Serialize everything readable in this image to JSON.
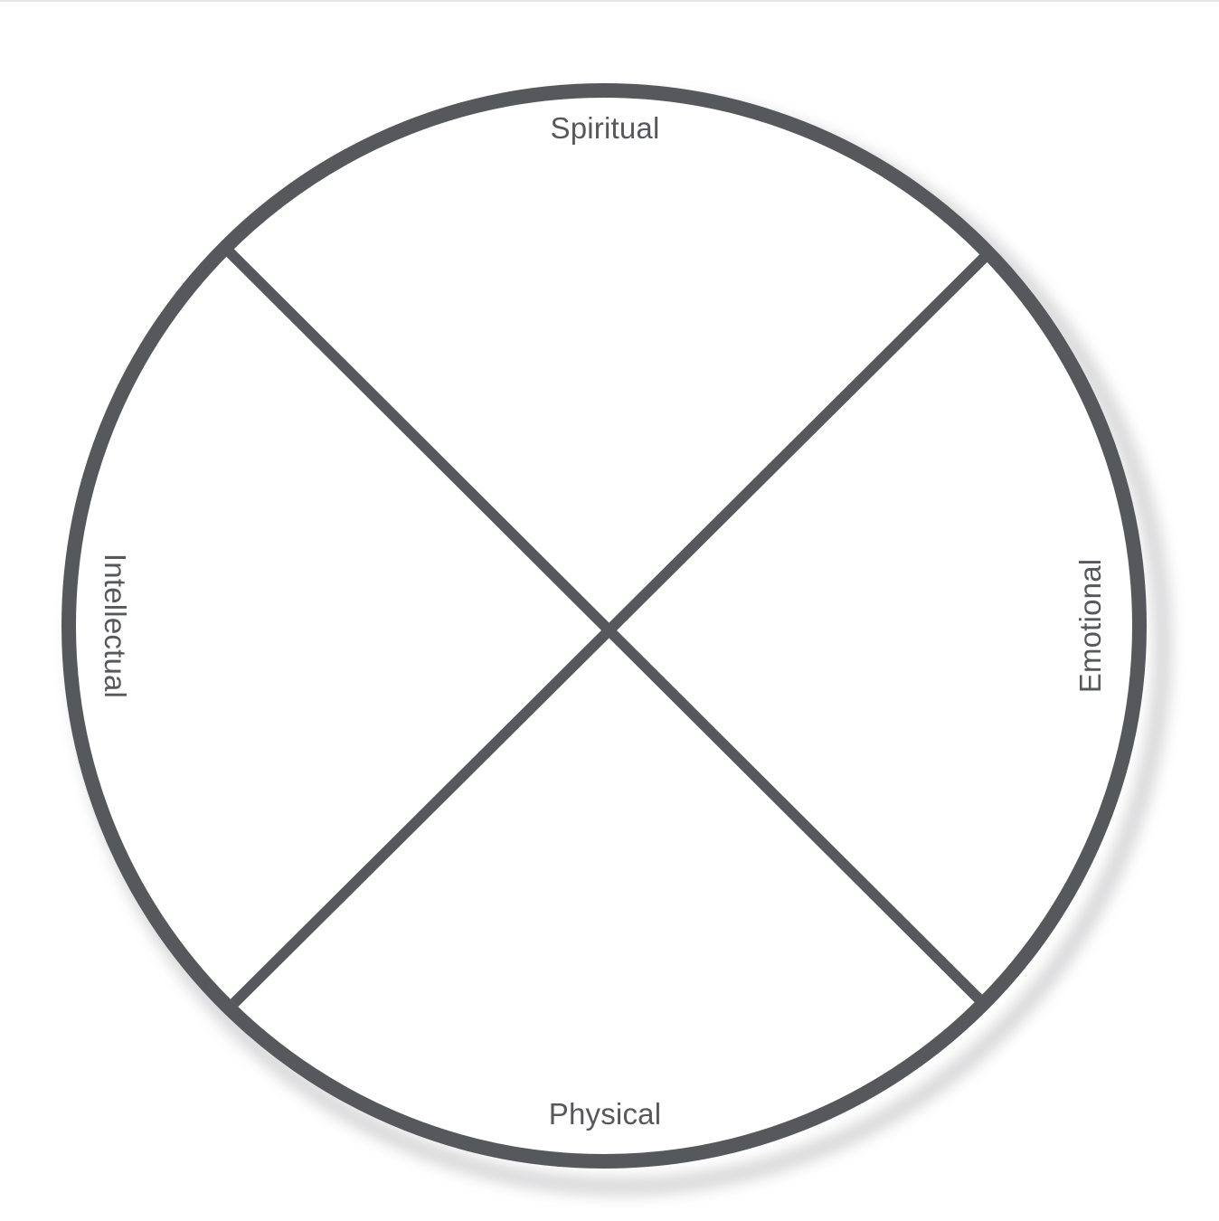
{
  "diagram": {
    "labels": {
      "top": "Spiritual",
      "right": "Emotional",
      "bottom": "Physical",
      "left": "Intellectual"
    }
  },
  "colors": {
    "stroke": "#57585b",
    "label": "#57585b",
    "shadow": "#9a9a9e",
    "background": "#ffffff"
  }
}
